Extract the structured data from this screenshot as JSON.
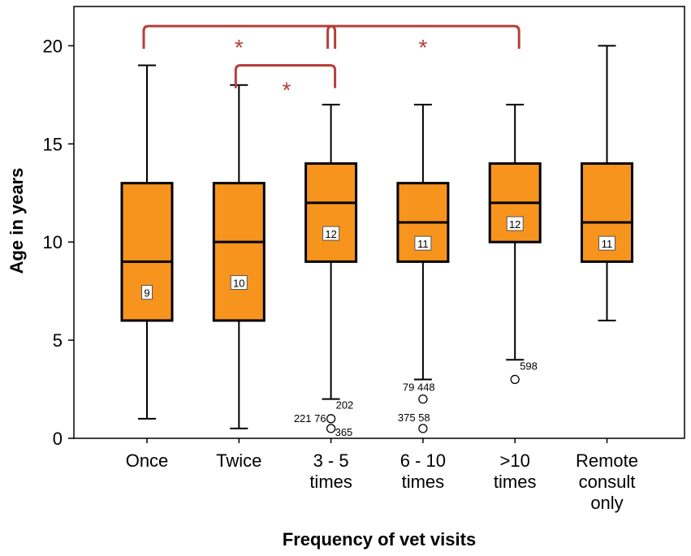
{
  "chart_data": {
    "type": "box",
    "title": "",
    "xlabel": "Frequency of vet visits",
    "ylabel": "Age in years",
    "ylim": [
      0,
      22
    ],
    "yticks": [
      0,
      5,
      10,
      15,
      20
    ],
    "grid": false,
    "colors": {
      "box_fill": "#f7941d",
      "stroke": "#000000",
      "significance": "#b5403a"
    },
    "categories": [
      {
        "lines": [
          "Once"
        ],
        "whisker_low": 1,
        "q1": 6,
        "median": 9,
        "q3": 13,
        "whisker_high": 19,
        "median_label": "9",
        "outliers": []
      },
      {
        "lines": [
          "Twice"
        ],
        "whisker_low": 0.5,
        "q1": 6,
        "median": 10,
        "q3": 13,
        "whisker_high": 18,
        "median_label": "10",
        "outliers": []
      },
      {
        "lines": [
          "3 - 5",
          "times"
        ],
        "whisker_low": 2,
        "q1": 9,
        "median": 12,
        "q3": 14,
        "whisker_high": 17,
        "median_label": "12",
        "outliers": [
          {
            "value": 1,
            "label": "221 76"
          },
          {
            "value": 0.5,
            "label": "365"
          }
        ],
        "whisker_label": "202"
      },
      {
        "lines": [
          "6 - 10",
          "times"
        ],
        "whisker_low": 3,
        "q1": 9,
        "median": 11,
        "q3": 13,
        "whisker_high": 17,
        "median_label": "11",
        "outliers": [
          {
            "value": 2,
            "label": "79 448"
          },
          {
            "value": 0.5,
            "label": "375 58"
          }
        ]
      },
      {
        "lines": [
          ">10",
          "times"
        ],
        "whisker_low": 4,
        "q1": 10,
        "median": 12,
        "q3": 14,
        "whisker_high": 17,
        "median_label": "12",
        "outliers": [
          {
            "value": 3,
            "label": "598"
          }
        ]
      },
      {
        "lines": [
          "Remote",
          "consult",
          "only"
        ],
        "whisker_low": 6,
        "q1": 9,
        "median": 11,
        "q3": 14,
        "whisker_high": 20,
        "median_label": "11",
        "outliers": []
      }
    ],
    "significance": [
      {
        "from": 0,
        "to": 2,
        "level": 21,
        "label": "*"
      },
      {
        "from": 2,
        "to": 4,
        "level": 21,
        "label": "*"
      },
      {
        "from": 1,
        "to": 2,
        "level": 19,
        "label": "*"
      }
    ]
  }
}
